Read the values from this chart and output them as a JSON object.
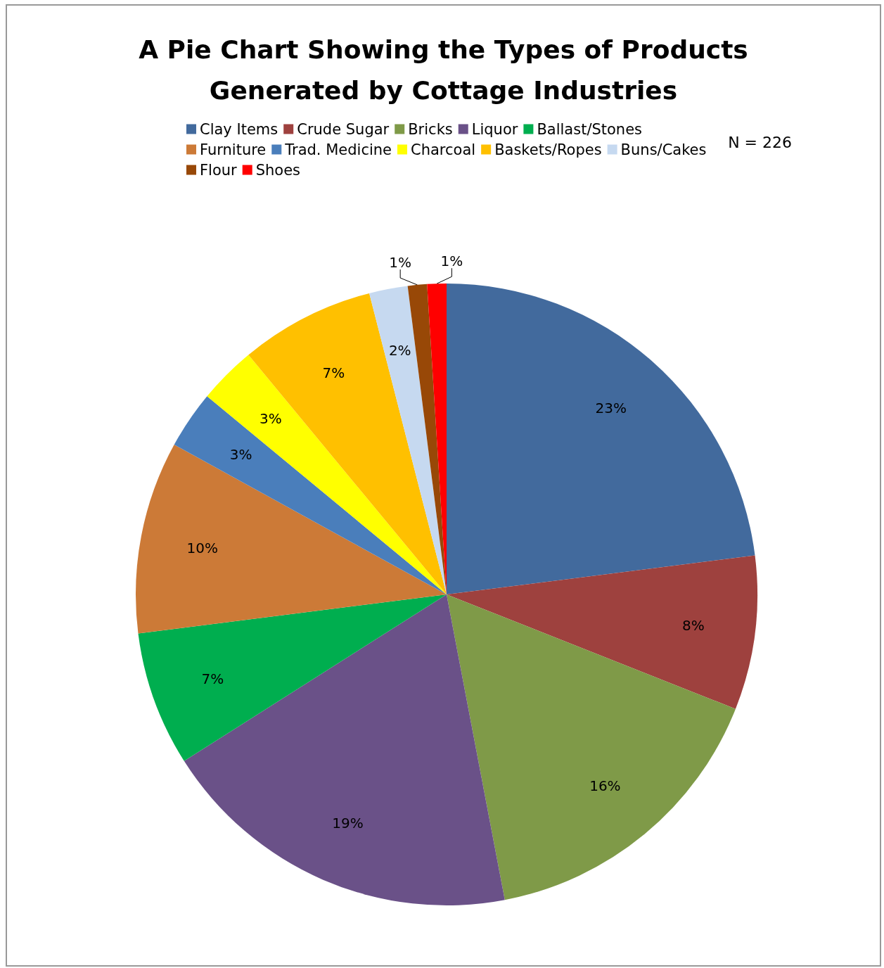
{
  "chart_data": {
    "type": "pie",
    "title": "A Pie Chart Showing the Types of Products\nGenerated by Cottage Industries",
    "categories": [
      "Clay Items",
      "Crude Sugar",
      "Bricks",
      "Liquor",
      "Ballast/Stones",
      "Furniture",
      "Trad. Medicine",
      "Charcoal",
      "Baskets/Ropes",
      "Buns/Cakes",
      "Flour",
      "Shoes"
    ],
    "values": [
      23,
      8,
      16,
      19,
      7,
      10,
      3,
      3,
      7,
      2,
      1,
      1
    ],
    "value_labels": [
      "23%",
      "8%",
      "16%",
      "19%",
      "7%",
      "10%",
      "3%",
      "3%",
      "7%",
      "2%",
      "1%",
      "1%"
    ],
    "colors": [
      "#426a9d",
      "#9e413e",
      "#7f9a48",
      "#6a5188",
      "#00ae4f",
      "#cc7a37",
      "#4a7ebb",
      "#ffff00",
      "#ffc000",
      "#c6d9f0",
      "#984807",
      "#ff0000"
    ],
    "legend": "top",
    "annotations": [
      "N = 226"
    ]
  }
}
